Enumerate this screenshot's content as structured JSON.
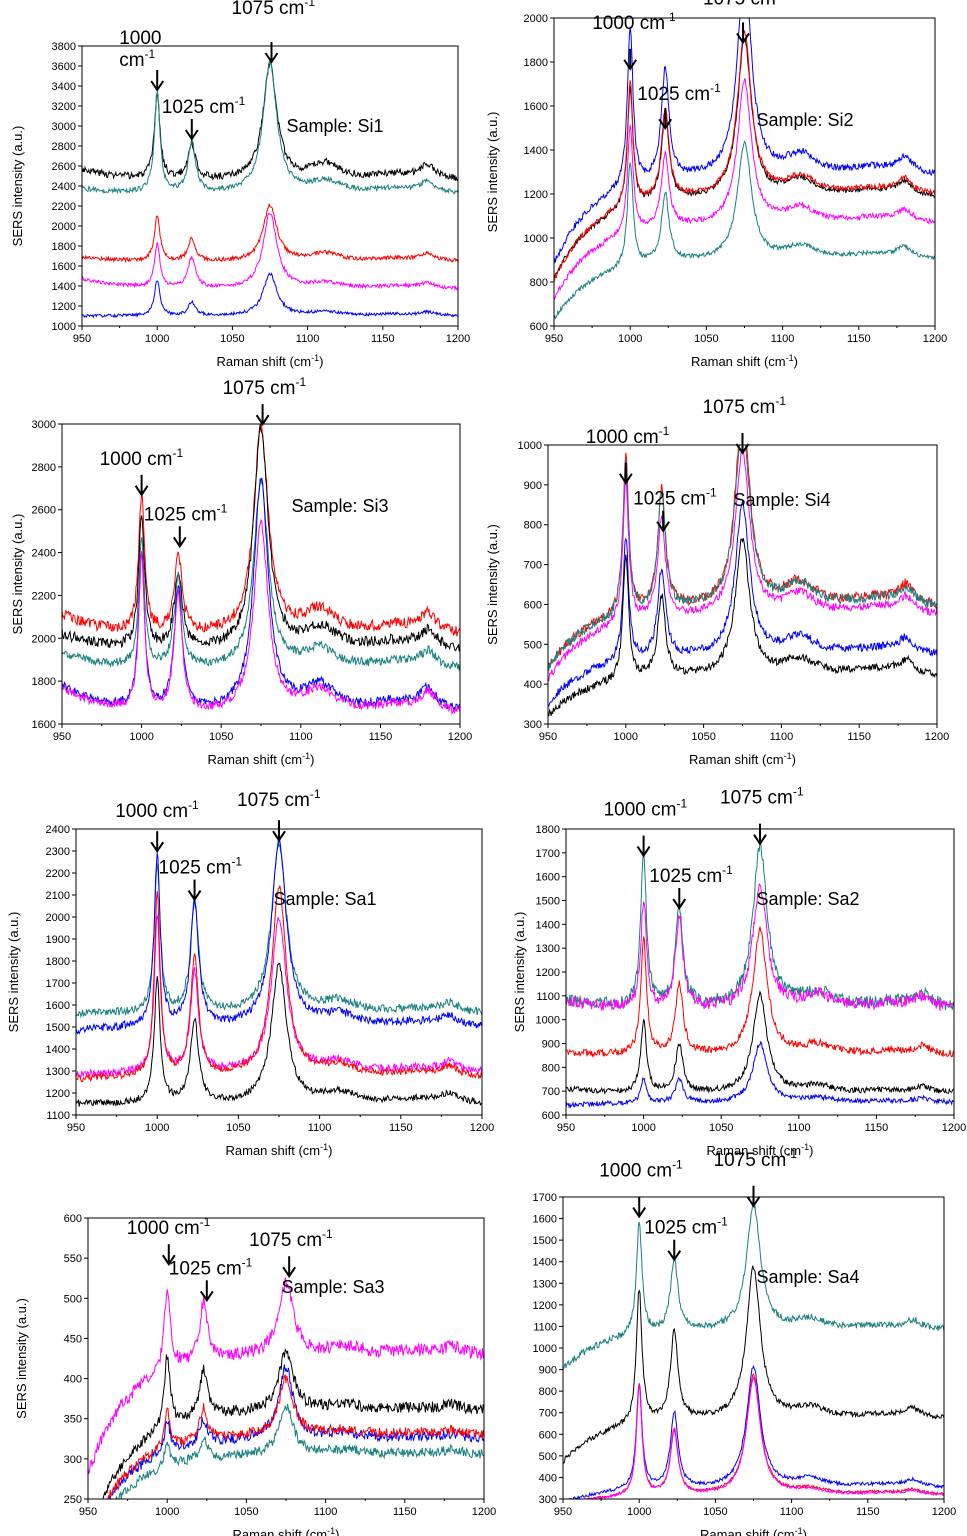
{
  "chart_data": [
    {
      "type": "line",
      "sample_label": "Sample: Si1",
      "xlabel": "Raman shift (cm",
      "xlabel_sup": "-1",
      "xlabel_end": ")",
      "ylabel": "SERS intensity (a.u.)",
      "xlim": [
        950,
        1200
      ],
      "ylim": [
        1000,
        3800
      ],
      "xticks": [
        950,
        1000,
        1050,
        1100,
        1150,
        1200
      ],
      "yticks": [
        1000,
        1200,
        1400,
        1600,
        1800,
        2000,
        2200,
        2400,
        2600,
        2800,
        3000,
        3200,
        3400,
        3600,
        3800
      ],
      "peaks": [
        {
          "label": "1000",
          "sup": "",
          "label2": "cm",
          "sup2": "-1",
          "x": 1000,
          "y": 3340
        },
        {
          "label": "1025 cm",
          "sup": "-1",
          "x": 1023,
          "y": 2850
        },
        {
          "label": "1075 cm",
          "sup": "-1",
          "x": 1076,
          "y": 3620
        }
      ],
      "series": [
        {
          "color": "#000000",
          "baseline": 2450,
          "slope": 120,
          "h1000": 850,
          "h1025": 350,
          "h1075": 1150,
          "hump": 160,
          "noise": 35
        },
        {
          "color": "#1a8080",
          "baseline": 2320,
          "slope": 50,
          "h1000": 1000,
          "h1025": 500,
          "h1075": 1300,
          "hump": 120,
          "noise": 25
        },
        {
          "color": "#ff0000",
          "baseline": 1640,
          "slope": 50,
          "h1000": 450,
          "h1025": 220,
          "h1075": 560,
          "hump": 80,
          "noise": 20
        },
        {
          "color": "#ff00ff",
          "baseline": 1370,
          "slope": 100,
          "h1000": 430,
          "h1025": 300,
          "h1075": 760,
          "hump": 60,
          "noise": 18
        },
        {
          "color": "#0000ff",
          "baseline": 1100,
          "slope": 0,
          "h1000": 360,
          "h1025": 130,
          "h1075": 420,
          "hump": 40,
          "noise": 15
        }
      ]
    },
    {
      "type": "line",
      "sample_label": "Sample: Si2",
      "xlabel": "Raman shift (cm",
      "xlabel_sup": "-1",
      "xlabel_end": ")",
      "ylabel": "SERS intensity (a.u.)",
      "xlim": [
        950,
        1200
      ],
      "ylim": [
        600,
        2000
      ],
      "xticks": [
        950,
        1000,
        1050,
        1100,
        1150,
        1200
      ],
      "yticks": [
        600,
        800,
        1000,
        1200,
        1400,
        1600,
        1800,
        2000
      ],
      "peaks": [
        {
          "label": "1000 cm",
          "sup": "-1",
          "x": 1000,
          "y": 1760
        },
        {
          "label": "1025 cm",
          "sup": "-1",
          "x": 1023,
          "y": 1490
        },
        {
          "label": "1075 cm",
          "sup": "-1",
          "x": 1074,
          "y": 1880
        }
      ],
      "series": [
        {
          "color": "#0000ff",
          "baseline": 1280,
          "slope": -400,
          "h1000": 720,
          "h1025": 500,
          "h1075": 940,
          "hump": 90,
          "noise": 15
        },
        {
          "color": "#000000",
          "baseline": 1180,
          "slope": -370,
          "h1000": 540,
          "h1025": 400,
          "h1075": 720,
          "hump": 80,
          "noise": 12
        },
        {
          "color": "#ff0000",
          "baseline": 1190,
          "slope": -390,
          "h1000": 560,
          "h1025": 410,
          "h1075": 740,
          "hump": 80,
          "noise": 12
        },
        {
          "color": "#ff00ff",
          "baseline": 1060,
          "slope": -340,
          "h1000": 480,
          "h1025": 330,
          "h1075": 650,
          "hump": 70,
          "noise": 12
        },
        {
          "color": "#1a8080",
          "baseline": 900,
          "slope": -270,
          "h1000": 480,
          "h1025": 310,
          "h1075": 530,
          "hump": 60,
          "noise": 10
        }
      ]
    },
    {
      "type": "line",
      "sample_label": "Sample: Si3",
      "xlabel": "Raman shift (cm",
      "xlabel_sup": "-1",
      "xlabel_end": ")",
      "ylabel": "SERS intensity (a.u.)",
      "xlim": [
        950,
        1200
      ],
      "ylim": [
        1600,
        3000
      ],
      "xticks": [
        950,
        1000,
        1050,
        1100,
        1150,
        1200
      ],
      "yticks": [
        1600,
        1800,
        2000,
        2200,
        2400,
        2600,
        2800,
        3000
      ],
      "peaks": [
        {
          "label": "1000 cm",
          "sup": "-1",
          "x": 1000,
          "y": 2660
        },
        {
          "label": "1025 cm",
          "sup": "-1",
          "x": 1024,
          "y": 2420
        },
        {
          "label": "1075 cm",
          "sup": "-1",
          "x": 1076,
          "y": 2990
        }
      ],
      "series": [
        {
          "color": "#ff0000",
          "baseline": 2010,
          "slope": 100,
          "h1000": 640,
          "h1025": 370,
          "h1075": 970,
          "hump": 110,
          "noise": 25
        },
        {
          "color": "#000000",
          "baseline": 1940,
          "slope": 80,
          "h1000": 620,
          "h1025": 350,
          "h1075": 1030,
          "hump": 100,
          "noise": 25
        },
        {
          "color": "#1a8080",
          "baseline": 1850,
          "slope": 80,
          "h1000": 590,
          "h1025": 420,
          "h1075": 880,
          "hump": 90,
          "noise": 20
        },
        {
          "color": "#0000ff",
          "baseline": 1650,
          "slope": 130,
          "h1000": 730,
          "h1025": 560,
          "h1075": 1080,
          "hump": 120,
          "noise": 20
        },
        {
          "color": "#ff00ff",
          "baseline": 1640,
          "slope": 130,
          "h1000": 720,
          "h1025": 560,
          "h1075": 880,
          "hump": 110,
          "noise": 20
        }
      ]
    },
    {
      "type": "line",
      "sample_label": "Sample: Si4",
      "xlabel": "Raman shift (cm",
      "xlabel_sup": "-1",
      "xlabel_end": ")",
      "ylabel": "SERS intensity (a.u.)",
      "xlim": [
        950,
        1200
      ],
      "ylim": [
        300,
        1000
      ],
      "xticks": [
        950,
        1000,
        1050,
        1100,
        1150,
        1200
      ],
      "yticks": [
        300,
        400,
        500,
        600,
        700,
        800,
        900,
        1000
      ],
      "peaks": [
        {
          "label": "1000 cm",
          "sup": "-1",
          "x": 1000,
          "y": 900
        },
        {
          "label": "1025 cm",
          "sup": "-1",
          "x": 1024,
          "y": 780
        },
        {
          "label": "1075 cm",
          "sup": "-1",
          "x": 1075,
          "y": 975
        }
      ],
      "series": [
        {
          "color": "#ff0000",
          "baseline": 590,
          "slope": -150,
          "h1000": 400,
          "h1025": 300,
          "h1075": 500,
          "hump": 60,
          "noise": 12
        },
        {
          "color": "#1a8080",
          "baseline": 590,
          "slope": -150,
          "h1000": 380,
          "h1025": 290,
          "h1075": 470,
          "hump": 55,
          "noise": 12
        },
        {
          "color": "#ff00ff",
          "baseline": 570,
          "slope": -160,
          "h1000": 360,
          "h1025": 250,
          "h1075": 410,
          "hump": 50,
          "noise": 10
        },
        {
          "color": "#0000ff",
          "baseline": 470,
          "slope": -120,
          "h1000": 310,
          "h1025": 220,
          "h1075": 380,
          "hump": 45,
          "noise": 10
        },
        {
          "color": "#000000",
          "baseline": 420,
          "slope": -100,
          "h1000": 320,
          "h1025": 200,
          "h1075": 340,
          "hump": 40,
          "noise": 10
        }
      ]
    },
    {
      "type": "line",
      "sample_label": "Sample: Sa1",
      "xlabel": "Raman shift (cm",
      "xlabel_sup": "-1",
      "xlabel_end": ")",
      "ylabel": "SERS intensity (a.u.)",
      "xlim": [
        950,
        1200
      ],
      "ylim": [
        1100,
        2400
      ],
      "xticks": [
        950,
        1000,
        1050,
        1100,
        1150,
        1200
      ],
      "yticks": [
        1100,
        1200,
        1300,
        1400,
        1500,
        1600,
        1700,
        1800,
        1900,
        2000,
        2100,
        2200,
        2300,
        2400
      ],
      "peaks": [
        {
          "label": "1000 cm",
          "sup": "-1",
          "x": 1000,
          "y": 2290
        },
        {
          "label": "1025 cm",
          "sup": "-1",
          "x": 1023,
          "y": 2070
        },
        {
          "label": "1075 cm",
          "sup": "-1",
          "x": 1075,
          "y": 2340
        }
      ],
      "series": [
        {
          "color": "#1a8080",
          "baseline": 1560,
          "slope": 0,
          "h1000": 660,
          "h1025": 500,
          "h1075": 770,
          "hump": 50,
          "noise": 18
        },
        {
          "color": "#0000ff",
          "baseline": 1500,
          "slope": -20,
          "h1000": 780,
          "h1025": 560,
          "h1075": 830,
          "hump": 50,
          "noise": 18
        },
        {
          "color": "#ff00ff",
          "baseline": 1290,
          "slope": -10,
          "h1000": 700,
          "h1025": 450,
          "h1075": 700,
          "hump": 50,
          "noise": 18
        },
        {
          "color": "#ff0000",
          "baseline": 1270,
          "slope": -10,
          "h1000": 830,
          "h1025": 540,
          "h1075": 860,
          "hump": 50,
          "noise": 15
        },
        {
          "color": "#000000",
          "baseline": 1150,
          "slope": 0,
          "h1000": 560,
          "h1025": 380,
          "h1075": 630,
          "hump": 50,
          "noise": 15
        }
      ]
    },
    {
      "type": "line",
      "sample_label": "Sample: Sa2",
      "xlabel": "Raman shift (cm",
      "xlabel_sup": "-1",
      "xlabel_end": ")",
      "ylabel": "SERS intensity (a.u.)",
      "xlim": [
        950,
        1200
      ],
      "ylim": [
        600,
        1800
      ],
      "xticks": [
        950,
        1000,
        1050,
        1100,
        1150,
        1200
      ],
      "yticks": [
        600,
        700,
        800,
        900,
        1000,
        1100,
        1200,
        1300,
        1400,
        1500,
        1600,
        1700,
        1800
      ],
      "peaks": [
        {
          "label": "1000 cm",
          "sup": "-1",
          "x": 1000,
          "y": 1680
        },
        {
          "label": "1025 cm",
          "sup": "-1",
          "x": 1023,
          "y": 1460
        },
        {
          "label": "1075 cm",
          "sup": "-1",
          "x": 1075,
          "y": 1730
        }
      ],
      "series": [
        {
          "color": "#1a8080",
          "baseline": 1050,
          "slope": 30,
          "h1000": 640,
          "h1025": 410,
          "h1075": 670,
          "hump": 60,
          "noise": 25
        },
        {
          "color": "#ff00ff",
          "baseline": 1040,
          "slope": 40,
          "h1000": 450,
          "h1025": 370,
          "h1075": 520,
          "hump": 60,
          "noise": 25
        },
        {
          "color": "#ff0000",
          "baseline": 850,
          "slope": 10,
          "h1000": 490,
          "h1025": 290,
          "h1075": 520,
          "hump": 40,
          "noise": 15
        },
        {
          "color": "#000000",
          "baseline": 690,
          "slope": 20,
          "h1000": 300,
          "h1025": 200,
          "h1075": 410,
          "hump": 30,
          "noise": 12
        },
        {
          "color": "#0000ff",
          "baseline": 650,
          "slope": -10,
          "h1000": 100,
          "h1025": 100,
          "h1075": 250,
          "hump": 20,
          "noise": 10
        }
      ]
    },
    {
      "type": "line",
      "sample_label": "Sample: Sa3",
      "xlabel": "Raman shift (cm",
      "xlabel_sup": "-1",
      "xlabel_end": ")",
      "ylabel": "SERS intensity (a.u.)",
      "xlim": [
        950,
        1200
      ],
      "ylim": [
        250,
        600
      ],
      "xticks": [
        950,
        1000,
        1050,
        1100,
        1150,
        1200
      ],
      "yticks": [
        250,
        300,
        350,
        400,
        450,
        500,
        550,
        600
      ],
      "peaks": [
        {
          "label": "1000 cm",
          "sup": "-1",
          "x": 1001,
          "y": 540
        },
        {
          "label": "1025 cm",
          "sup": "-1",
          "x": 1025,
          "y": 495
        },
        {
          "label": "1075 cm",
          "sup": "-1",
          "x": 1077,
          "y": 525
        }
      ],
      "series": [
        {
          "color": "#ff00ff",
          "baseline": 430,
          "slope": -150,
          "h1000": 100,
          "h1025": 70,
          "h1075": 90,
          "hump": 10,
          "noise": 8
        },
        {
          "color": "#000000",
          "baseline": 360,
          "slope": -160,
          "h1000": 90,
          "h1025": 60,
          "h1075": 75,
          "hump": 8,
          "noise": 7
        },
        {
          "color": "#0000ff",
          "baseline": 325,
          "slope": -130,
          "h1000": 40,
          "h1025": 30,
          "h1075": 90,
          "hump": 6,
          "noise": 6
        },
        {
          "color": "#ff0000",
          "baseline": 330,
          "slope": -130,
          "h1000": 45,
          "h1025": 40,
          "h1075": 70,
          "hump": 6,
          "noise": 6
        },
        {
          "color": "#1a8080",
          "baseline": 305,
          "slope": -120,
          "h1000": 30,
          "h1025": 25,
          "h1075": 60,
          "hump": 6,
          "noise": 6
        }
      ]
    },
    {
      "type": "line",
      "sample_label": "Sample: Sa4",
      "xlabel": "Raman shift (cm",
      "xlabel_sup": "-1",
      "xlabel_end": ")",
      "ylabel": "",
      "xlim": [
        950,
        1200
      ],
      "ylim": [
        300,
        1700
      ],
      "xticks": [
        950,
        1000,
        1050,
        1100,
        1150,
        1200
      ],
      "yticks": [
        300,
        400,
        500,
        600,
        700,
        800,
        900,
        1000,
        1100,
        1200,
        1300,
        1400,
        1500,
        1600,
        1700
      ],
      "peaks": [
        {
          "label": "1000 cm",
          "sup": "-1",
          "x": 1000,
          "y": 1600
        },
        {
          "label": "1025 cm",
          "sup": "-1",
          "x": 1023,
          "y": 1400
        },
        {
          "label": "1075 cm",
          "sup": "-1",
          "x": 1075,
          "y": 1650
        }
      ],
      "series": [
        {
          "color": "#1a8080",
          "baseline": 1080,
          "slope": -180,
          "h1000": 520,
          "h1025": 330,
          "h1075": 580,
          "hump": 50,
          "noise": 15
        },
        {
          "color": "#000000",
          "baseline": 670,
          "slope": -200,
          "h1000": 620,
          "h1025": 410,
          "h1075": 700,
          "hump": 50,
          "noise": 12
        },
        {
          "color": "#0000ff",
          "baseline": 350,
          "slope": -70,
          "h1000": 490,
          "h1025": 350,
          "h1075": 560,
          "hump": 40,
          "noise": 8
        },
        {
          "color": "#ff0000",
          "baseline": 320,
          "slope": -50,
          "h1000": 510,
          "h1025": 290,
          "h1075": 550,
          "hump": 25,
          "noise": 6
        },
        {
          "color": "#ff00ff",
          "baseline": 315,
          "slope": -40,
          "h1000": 505,
          "h1025": 310,
          "h1075": 540,
          "hump": 25,
          "noise": 6
        }
      ]
    }
  ]
}
